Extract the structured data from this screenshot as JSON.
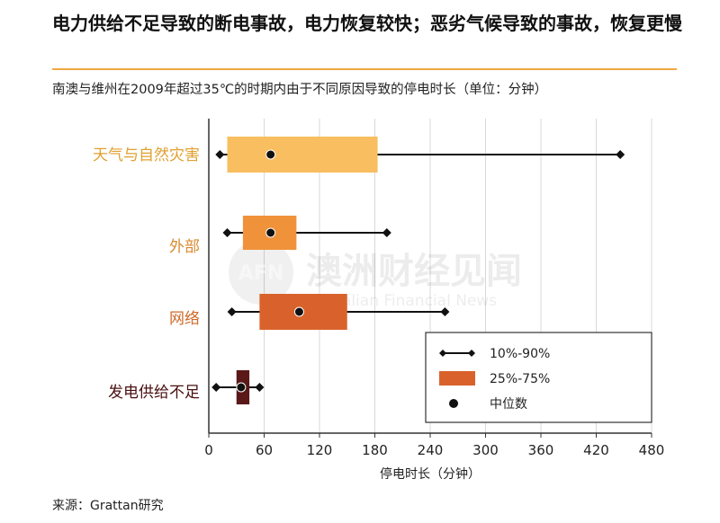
{
  "title": "电力供给不足导致的断电事故，电力恢复较快；恶劣气候导致的事故，恢复更慢",
  "subtitle": "南澳与维州在2009年超过35℃的时期内由于不同原因导致的停电时长（单位：分钟）",
  "source": "来源：Grattan研究",
  "watermark": {
    "cn": "澳洲财经见闻",
    "en": "Australian Financial News",
    "logo": "AFN"
  },
  "chart_data": {
    "type": "box",
    "xlabel": "停电时长（分钟）",
    "xlim": [
      0,
      480
    ],
    "xticks": [
      0,
      60,
      120,
      180,
      240,
      300,
      360,
      420,
      480
    ],
    "categories": [
      "天气与自然灾害",
      "外部",
      "网络",
      "发电供给不足"
    ],
    "category_colors": [
      "#e0a030",
      "#d88a2e",
      "#cf6a2a",
      "#4a1010"
    ],
    "series": [
      {
        "category": "天气与自然灾害",
        "p10": 12,
        "p25": 20,
        "median": 67,
        "p75": 183,
        "p90": 446,
        "color": "#f8be60"
      },
      {
        "category": "外部",
        "p10": 20,
        "p25": 37,
        "median": 67,
        "p75": 95,
        "p90": 193,
        "color": "#f0923a"
      },
      {
        "category": "网络",
        "p10": 25,
        "p25": 55,
        "median": 98,
        "p75": 150,
        "p90": 256,
        "color": "#d9622c"
      },
      {
        "category": "发电供给不足",
        "p10": 8,
        "p25": 30,
        "median": 35,
        "p75": 44,
        "p90": 55,
        "color": "#5a1818"
      }
    ],
    "legend": {
      "position": "bottom-right",
      "items": [
        {
          "label": "10%-90%",
          "kind": "whisker"
        },
        {
          "label": "25%-75%",
          "kind": "box",
          "color": "#d9622c"
        },
        {
          "label": "中位数",
          "kind": "median"
        }
      ]
    },
    "grid": true
  }
}
